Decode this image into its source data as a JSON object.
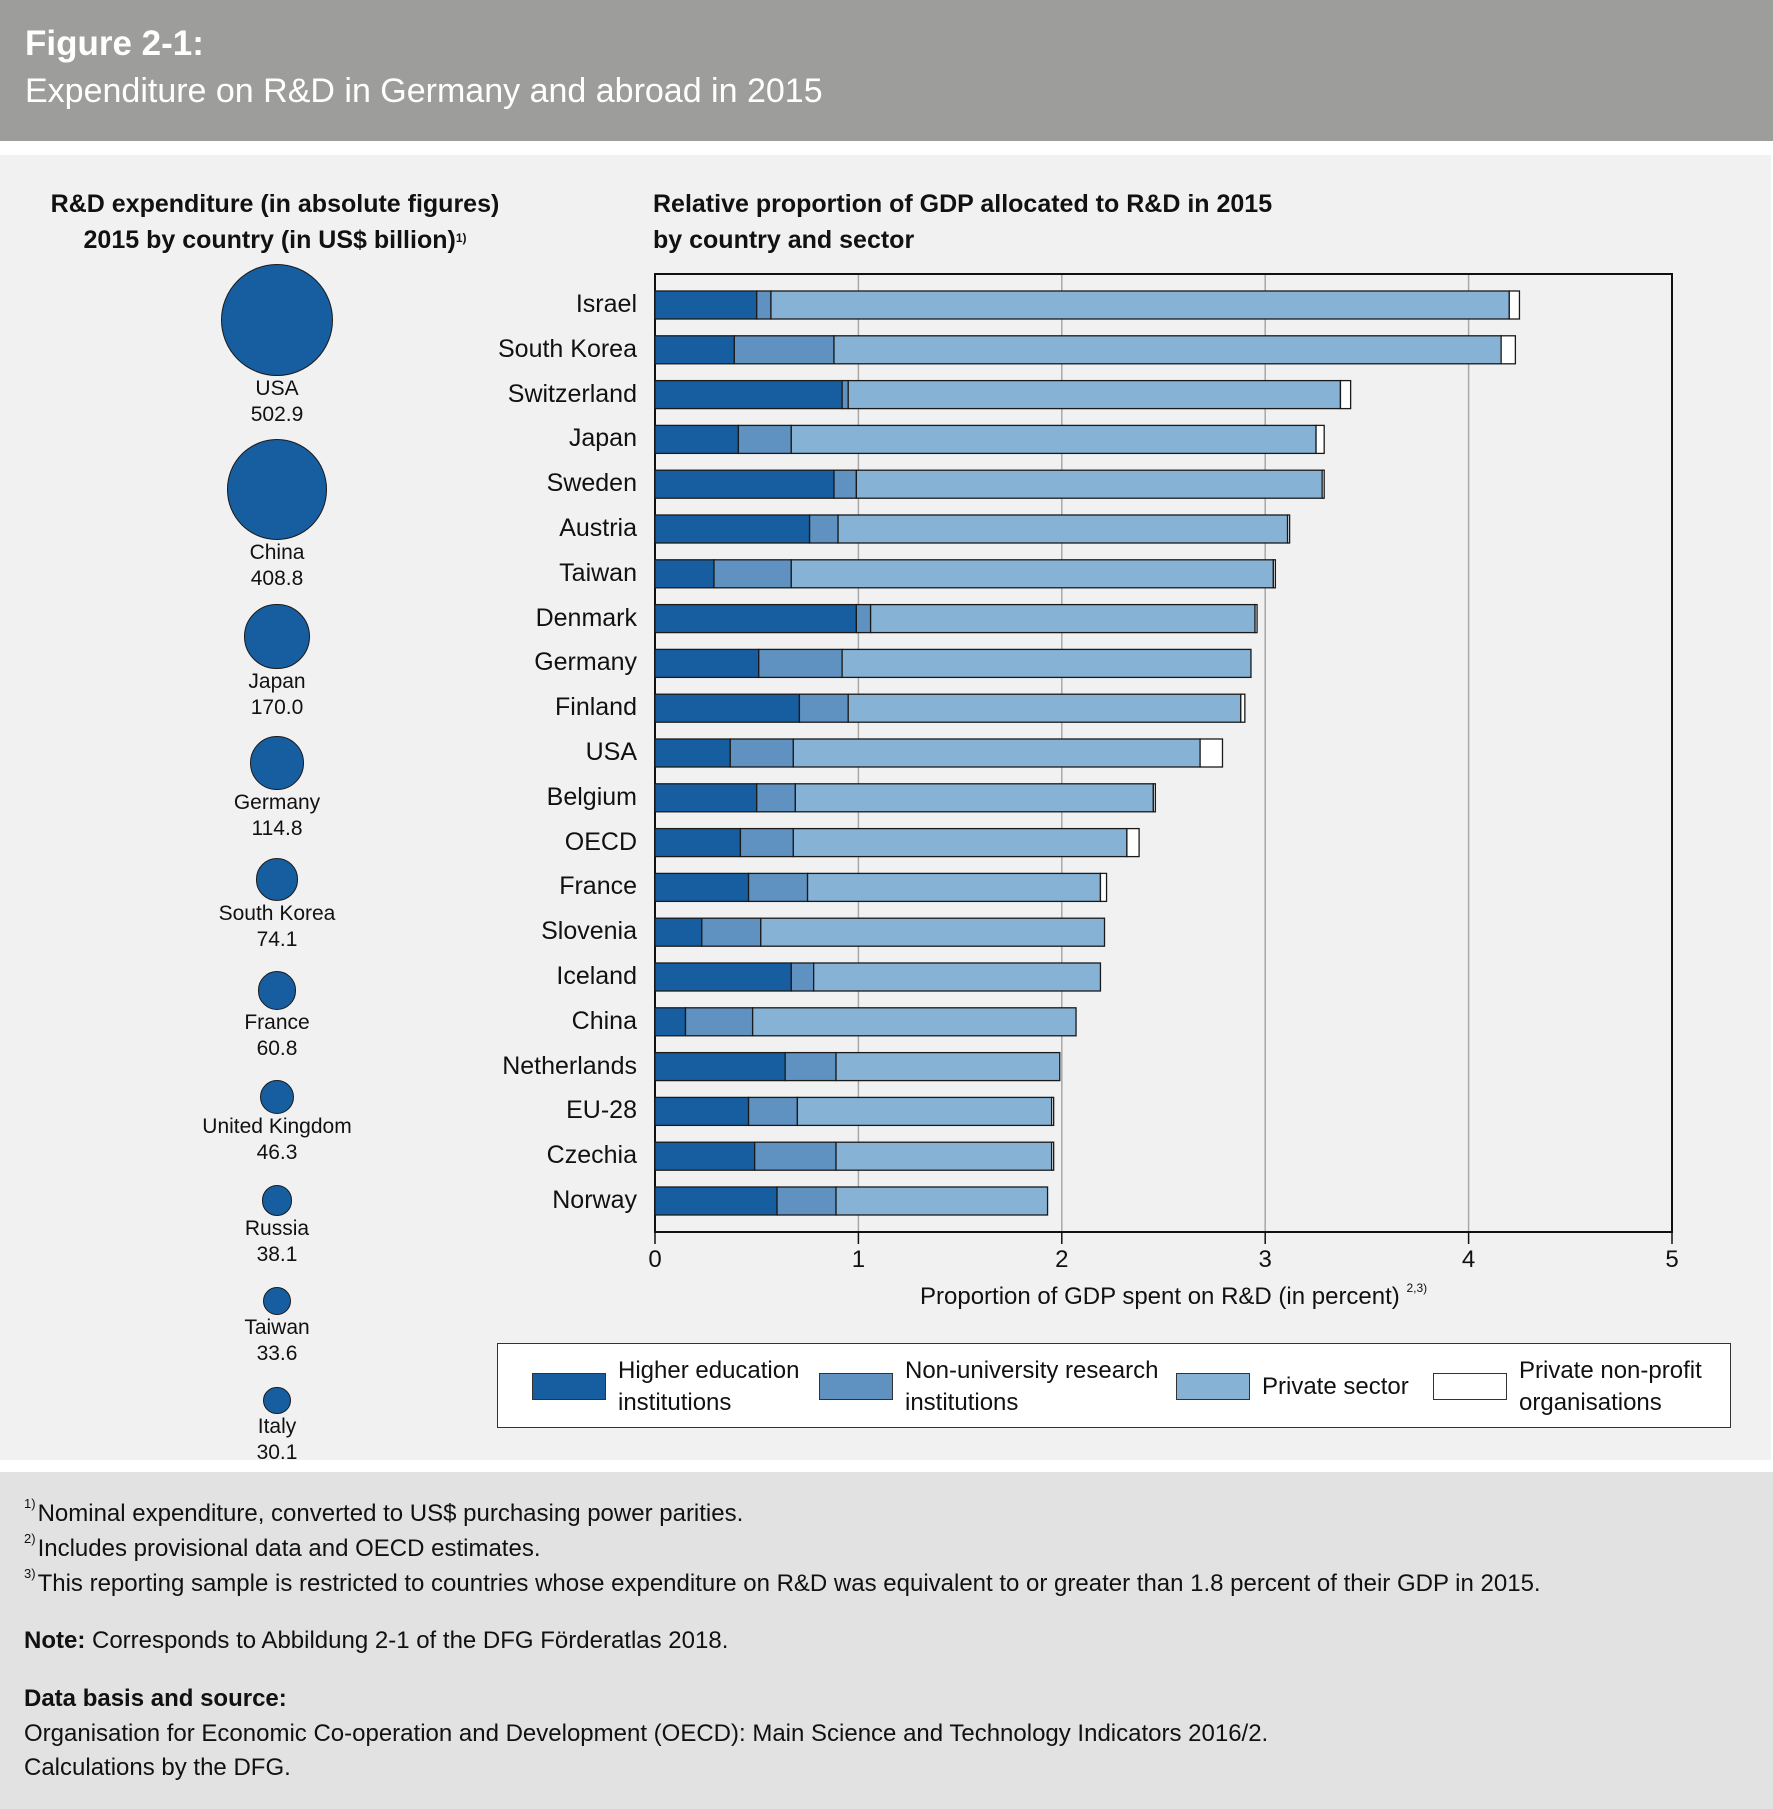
{
  "header": {
    "figure_label": "Figure 2-1:",
    "title": "Expenditure on R&D in Germany and abroad in 2015"
  },
  "left_panel": {
    "title_line1": "R&D expenditure (in absolute figures)",
    "title_line2": "2015 by country (in US$ billion)",
    "title_footnote": "1)",
    "bubbles": [
      {
        "country": "USA",
        "value": "502.9"
      },
      {
        "country": "China",
        "value": "408.8"
      },
      {
        "country": "Japan",
        "value": "170.0"
      },
      {
        "country": "Germany",
        "value": "114.8"
      },
      {
        "country": "South Korea",
        "value": "74.1"
      },
      {
        "country": "France",
        "value": "60.8"
      },
      {
        "country": "United Kingdom",
        "value": "46.3"
      },
      {
        "country": "Russia",
        "value": "38.1"
      },
      {
        "country": "Taiwan",
        "value": "33.6"
      },
      {
        "country": "Italy",
        "value": "30.1"
      }
    ]
  },
  "chart_data": {
    "type": "bar",
    "orientation": "horizontal",
    "stacked": true,
    "title": "Relative proportion of GDP allocated to R&D in 2015",
    "subtitle": "by country and sector",
    "xlabel": "Proportion of GDP spent on R&D (in percent)",
    "xlabel_footnote": "2,3)",
    "ylabel": "",
    "xlim": [
      0,
      5
    ],
    "xticks": [
      "0",
      "1",
      "2",
      "3",
      "4",
      "5"
    ],
    "grid": "vertical",
    "legend_position": "bottom",
    "colors": [
      "#165ea0",
      "#5f92c1",
      "#86b2d5",
      "#ffffff"
    ],
    "categories": [
      "Israel",
      "South Korea",
      "Switzerland",
      "Japan",
      "Sweden",
      "Austria",
      "Taiwan",
      "Denmark",
      "Germany",
      "Finland",
      "USA",
      "Belgium",
      "OECD",
      "France",
      "Slovenia",
      "Iceland",
      "China",
      "Netherlands",
      "EU-28",
      "Czechia",
      "Norway"
    ],
    "series": [
      {
        "name": "Higher education institutions",
        "values": [
          0.5,
          0.39,
          0.92,
          0.41,
          0.88,
          0.76,
          0.29,
          0.99,
          0.51,
          0.71,
          0.37,
          0.5,
          0.42,
          0.46,
          0.23,
          0.67,
          0.15,
          0.64,
          0.46,
          0.49,
          0.6
        ]
      },
      {
        "name": "Non-university research institutions",
        "values": [
          0.07,
          0.49,
          0.03,
          0.26,
          0.11,
          0.14,
          0.38,
          0.07,
          0.41,
          0.24,
          0.31,
          0.19,
          0.26,
          0.29,
          0.29,
          0.11,
          0.33,
          0.25,
          0.24,
          0.4,
          0.29
        ]
      },
      {
        "name": "Private sector",
        "values": [
          3.63,
          3.28,
          2.42,
          2.58,
          2.29,
          2.21,
          2.37,
          1.89,
          2.01,
          1.93,
          2.0,
          1.76,
          1.64,
          1.44,
          1.69,
          1.41,
          1.59,
          1.1,
          1.25,
          1.06,
          1.04
        ]
      },
      {
        "name": "Private non-profit organisations",
        "values": [
          0.05,
          0.07,
          0.05,
          0.04,
          0.01,
          0.01,
          0.01,
          0.01,
          0.0,
          0.02,
          0.11,
          0.01,
          0.06,
          0.03,
          0.0,
          0.0,
          0.0,
          0.0,
          0.01,
          0.01,
          0.0
        ]
      }
    ]
  },
  "legend": {
    "items": [
      {
        "line1": "Higher education",
        "line2": "institutions"
      },
      {
        "line1": "Non-university research",
        "line2": "institutions"
      },
      {
        "line1": "Private sector",
        "line2": ""
      },
      {
        "line1": "Private non-profit",
        "line2": "organisations"
      }
    ]
  },
  "footer": {
    "footnotes": [
      {
        "mark": "1)",
        "text": "Nominal expenditure, converted to US$ purchasing power parities."
      },
      {
        "mark": "2)",
        "text": "Includes provisional data and OECD estimates."
      },
      {
        "mark": "3)",
        "text": "This reporting sample is restricted to countries whose expenditure on R&D was equivalent to or greater than 1.8 percent of their GDP in 2015."
      }
    ],
    "note_label": "Note:",
    "note_text": "Corresponds to Abbildung 2-1 of the DFG Förderatlas 2018.",
    "source_label": "Data basis and source:",
    "source_line1": "Organisation for Economic Co-operation and Development (OECD): Main Science and Technology Indicators 2016/2.",
    "source_line2": "Calculations by the DFG."
  }
}
